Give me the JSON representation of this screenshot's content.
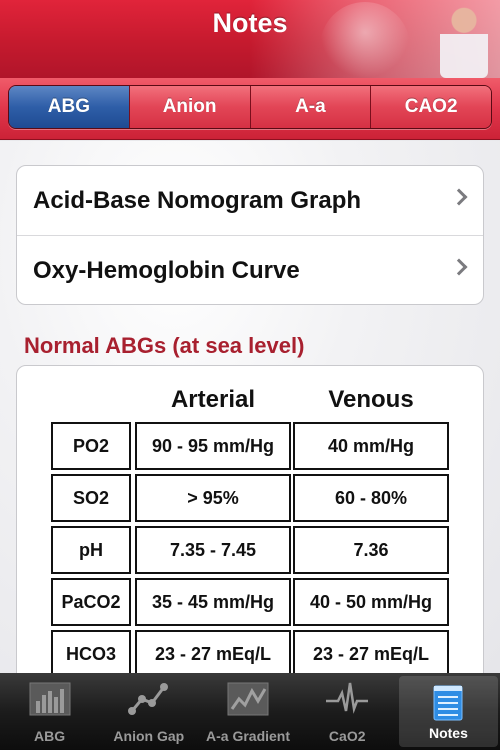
{
  "header": {
    "title": "Notes"
  },
  "segments": [
    {
      "label": "ABG",
      "active": true
    },
    {
      "label": "Anion",
      "active": false
    },
    {
      "label": "A-a",
      "active": false
    },
    {
      "label": "CAO2",
      "active": false
    }
  ],
  "nav": [
    {
      "label": "Acid-Base Nomogram Graph"
    },
    {
      "label": "Oxy-Hemoglobin Curve"
    }
  ],
  "section_title": "Normal ABGs (at sea level)",
  "table": {
    "columns": [
      "Arterial",
      "Venous"
    ],
    "rows": [
      {
        "name": "PO2",
        "arterial": "90 - 95 mm/Hg",
        "venous": "40 mm/Hg"
      },
      {
        "name": "SO2",
        "arterial": "> 95%",
        "venous": "60 - 80%"
      },
      {
        "name": "pH",
        "arterial": "7.35 - 7.45",
        "venous": "7.36"
      },
      {
        "name": "PaCO2",
        "arterial": "35 - 45 mm/Hg",
        "venous": "40 - 50 mm/Hg"
      },
      {
        "name": "HCO3",
        "arterial": "23 - 27 mEq/L",
        "venous": "23 - 27 mEq/L"
      }
    ]
  },
  "tabs": [
    {
      "label": "ABG",
      "icon": "bar-chart-icon",
      "active": false
    },
    {
      "label": "Anion Gap",
      "icon": "scatter-line-icon",
      "active": false
    },
    {
      "label": "A-a Gradient",
      "icon": "line-chart-icon",
      "active": false
    },
    {
      "label": "CaO2",
      "icon": "pulse-icon",
      "active": false
    },
    {
      "label": "Notes",
      "icon": "notepad-icon",
      "active": true
    }
  ],
  "colors": {
    "header_red": "#c51a2e",
    "active_segment_blue": "#2e5ea8",
    "section_title_red": "#a8202f",
    "active_tab_icon_blue": "#2f8de4"
  }
}
